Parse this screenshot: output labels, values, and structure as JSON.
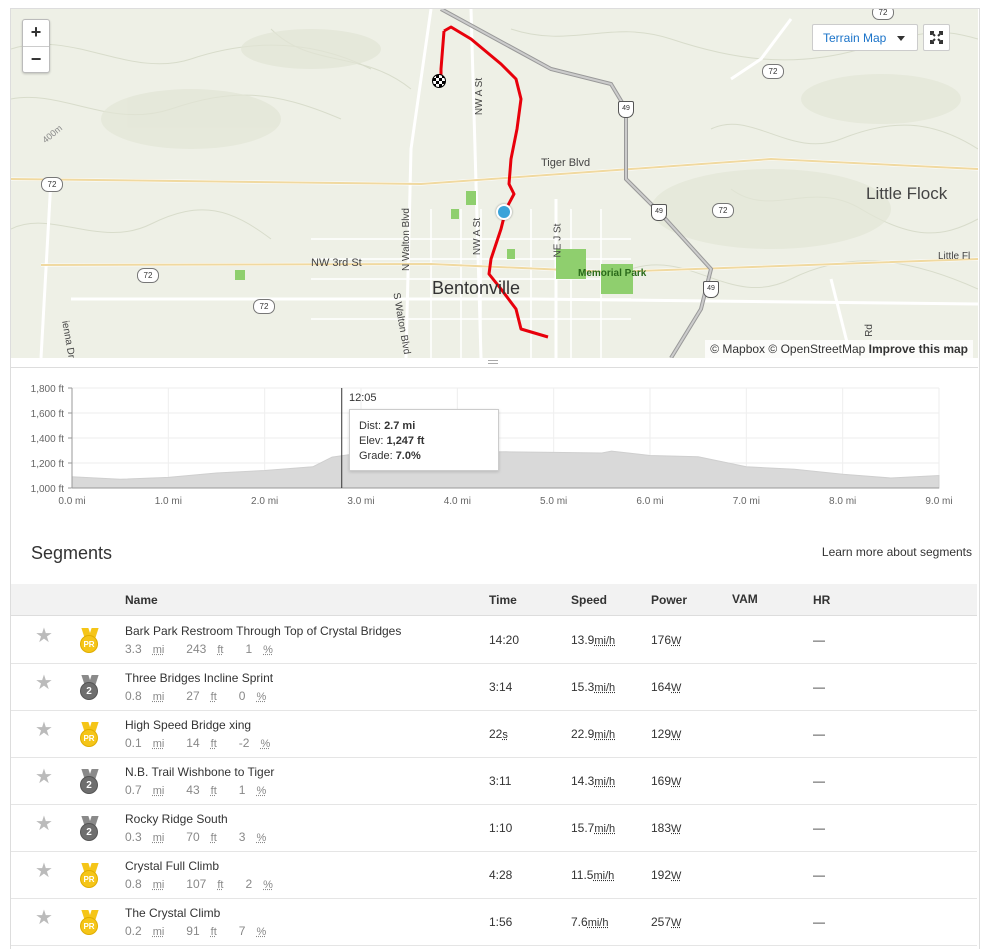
{
  "map": {
    "zoom_in": "+",
    "zoom_out": "−",
    "map_type": "Terrain Map",
    "attribution_mapbox": "© Mapbox",
    "attribution_osm": "© OpenStreetMap",
    "attribution_improve": "Improve this map",
    "labels": {
      "little_flock": "Little Flock",
      "bentonville": "Bentonville",
      "tiger_blvd": "Tiger Blvd",
      "nw_3rd": "NW 3rd St",
      "memorial_park": "Memorial Park",
      "n_walton": "N Walton Blvd",
      "s_walton": "S Walton Blvd",
      "nw_a_st_1": "NW A St",
      "nw_a_st_2": "NW A St",
      "ne_j_st": "NE J St",
      "little_fl": "Little Fl",
      "lenna": "ienna Dr",
      "elev_400": "400m",
      "rd": "Rd"
    },
    "shields": [
      "72",
      "72",
      "72",
      "72",
      "72",
      "72",
      "49",
      "49",
      "49"
    ]
  },
  "elevation": {
    "y_ticks": [
      "1,800 ft",
      "1,600 ft",
      "1,400 ft",
      "1,200 ft",
      "1,000 ft"
    ],
    "x_ticks": [
      "0.0 mi",
      "1.0 mi",
      "2.0 mi",
      "3.0 mi",
      "4.0 mi",
      "5.0 mi",
      "6.0 mi",
      "7.0 mi",
      "8.0 mi",
      "9.0 mi"
    ],
    "cursor_time": "12:05",
    "tooltip": {
      "dist_label": "Dist: ",
      "dist_value": "2.7 mi",
      "elev_label": "Elev: ",
      "elev_value": "1,247 ft",
      "grade_label": "Grade: ",
      "grade_value": "7.0%"
    }
  },
  "chart_data": {
    "type": "area",
    "xlabel": "",
    "ylabel": "",
    "xlim": [
      0,
      9
    ],
    "ylim": [
      1000,
      1800
    ],
    "x": [
      0,
      0.5,
      1.0,
      1.5,
      2.0,
      2.5,
      2.7,
      3.0,
      3.5,
      4.0,
      4.5,
      5.0,
      5.5,
      5.6,
      6.0,
      6.5,
      7.0,
      7.5,
      8.0,
      8.5,
      9.0
    ],
    "y": [
      1090,
      1070,
      1085,
      1120,
      1140,
      1170,
      1247,
      1280,
      1275,
      1285,
      1290,
      1285,
      1280,
      1295,
      1260,
      1250,
      1170,
      1150,
      1110,
      1080,
      1100
    ]
  },
  "segments": {
    "title": "Segments",
    "learn_more": "Learn more about segments",
    "headers": {
      "name": "Name",
      "time": "Time",
      "speed": "Speed",
      "power": "Power",
      "vam": "VAM",
      "hr": "HR"
    },
    "rows": [
      {
        "name": "Bark Park Restroom Through Top of Crystal Bridges",
        "dist": "3.3",
        "dist_unit": "mi",
        "elev": "243",
        "elev_unit": "ft",
        "grade": "1",
        "grade_unit": "%",
        "medal": "PR",
        "time": "14:20",
        "time_unit": "",
        "speed": "13.9",
        "speed_unit": "mi/h",
        "power": "176",
        "power_unit": "W",
        "vam": "",
        "hr": "—"
      },
      {
        "name": "Three Bridges Incline Sprint",
        "dist": "0.8",
        "dist_unit": "mi",
        "elev": "27",
        "elev_unit": "ft",
        "grade": "0",
        "grade_unit": "%",
        "medal": "2",
        "time": "3:14",
        "time_unit": "",
        "speed": "15.3",
        "speed_unit": "mi/h",
        "power": "164",
        "power_unit": "W",
        "vam": "",
        "hr": "—"
      },
      {
        "name": "High Speed Bridge xing",
        "dist": "0.1",
        "dist_unit": "mi",
        "elev": "14",
        "elev_unit": "ft",
        "grade": "-2",
        "grade_unit": "%",
        "medal": "PR",
        "time": "22",
        "time_unit": "s",
        "speed": "22.9",
        "speed_unit": "mi/h",
        "power": "129",
        "power_unit": "W",
        "vam": "",
        "hr": "—"
      },
      {
        "name": "N.B. Trail Wishbone to Tiger",
        "dist": "0.7",
        "dist_unit": "mi",
        "elev": "43",
        "elev_unit": "ft",
        "grade": "1",
        "grade_unit": "%",
        "medal": "2",
        "time": "3:11",
        "time_unit": "",
        "speed": "14.3",
        "speed_unit": "mi/h",
        "power": "169",
        "power_unit": "W",
        "vam": "",
        "hr": "—"
      },
      {
        "name": "Rocky Ridge South",
        "dist": "0.3",
        "dist_unit": "mi",
        "elev": "70",
        "elev_unit": "ft",
        "grade": "3",
        "grade_unit": "%",
        "medal": "2",
        "time": "1:10",
        "time_unit": "",
        "speed": "15.7",
        "speed_unit": "mi/h",
        "power": "183",
        "power_unit": "W",
        "vam": "",
        "hr": "—"
      },
      {
        "name": "Crystal Full Climb",
        "dist": "0.8",
        "dist_unit": "mi",
        "elev": "107",
        "elev_unit": "ft",
        "grade": "2",
        "grade_unit": "%",
        "medal": "PR",
        "time": "4:28",
        "time_unit": "",
        "speed": "11.5",
        "speed_unit": "mi/h",
        "power": "192",
        "power_unit": "W",
        "vam": "",
        "hr": "—"
      },
      {
        "name": "The Crystal Climb",
        "dist": "0.2",
        "dist_unit": "mi",
        "elev": "91",
        "elev_unit": "ft",
        "grade": "7",
        "grade_unit": "%",
        "medal": "PR",
        "time": "1:56",
        "time_unit": "",
        "speed": "7.6",
        "speed_unit": "mi/h",
        "power": "257",
        "power_unit": "W",
        "vam": "",
        "hr": "—"
      }
    ]
  },
  "colors": {
    "route": "#e8000b",
    "link": "#1a73c9",
    "pr_gold": "#f5c518",
    "silver": "#6e6e6e",
    "park": "#8fcf6e"
  }
}
